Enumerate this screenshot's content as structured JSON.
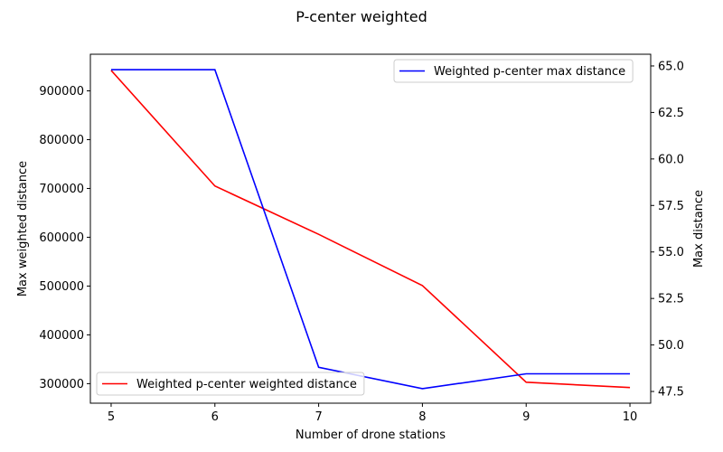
{
  "chart_data": {
    "type": "line",
    "title": "P-center weighted",
    "xlabel": "Number of drone stations",
    "ylabel_left": "Max weighted distance",
    "ylabel_right": "Max distance",
    "x": [
      5,
      6,
      7,
      8,
      9,
      10
    ],
    "xlim": [
      4.8,
      10.2
    ],
    "ylim_left": [
      260000,
      975000
    ],
    "ylim_right": [
      46.87,
      65.63
    ],
    "x_ticks": [
      5,
      6,
      7,
      8,
      9,
      10
    ],
    "x_tick_labels": [
      "5",
      "6",
      "7",
      "8",
      "9",
      "10"
    ],
    "y_ticks_left": [
      300000,
      400000,
      500000,
      600000,
      700000,
      800000,
      900000
    ],
    "y_tick_labels_left": [
      "300000",
      "400000",
      "500000",
      "600000",
      "700000",
      "800000",
      "900000"
    ],
    "y_ticks_right": [
      47.5,
      50.0,
      52.5,
      55.0,
      57.5,
      60.0,
      62.5,
      65.0
    ],
    "y_tick_labels_right": [
      "47.5",
      "50.0",
      "52.5",
      "55.0",
      "57.5",
      "60.0",
      "62.5",
      "65.0"
    ],
    "grid": false,
    "series": [
      {
        "name": "Weighted p-center weighted distance",
        "axis": "left",
        "color": "#ff0000",
        "values": [
          942000,
          705000,
          606000,
          501000,
          303000,
          292000
        ],
        "legend_position": "lower-left"
      },
      {
        "name": "Weighted p-center max distance",
        "axis": "right",
        "color": "#0000ff",
        "values": [
          64.8,
          64.8,
          48.8,
          47.65,
          48.45,
          48.45
        ],
        "legend_position": "upper-right"
      }
    ]
  }
}
